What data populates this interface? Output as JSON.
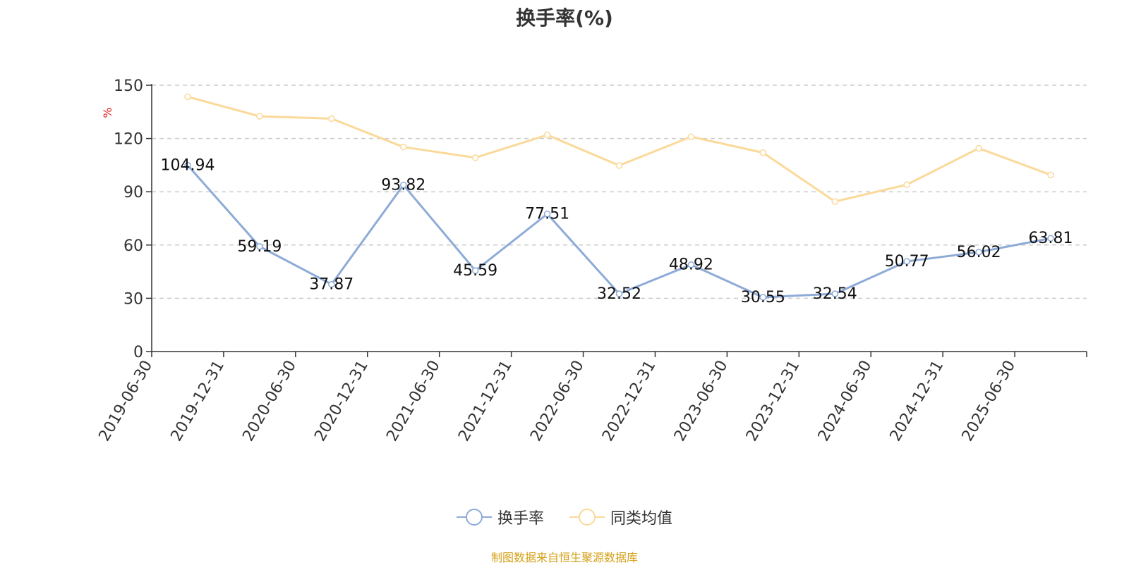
{
  "chart_data": {
    "type": "line",
    "title": "换手率(%)",
    "ylabel": "%",
    "ylim": [
      0,
      150
    ],
    "yticks": [
      0,
      30,
      60,
      90,
      120,
      150
    ],
    "grid": true,
    "legend_position": "bottom",
    "categories": [
      "2019-06-30",
      "2019-12-31",
      "2020-06-30",
      "2020-12-31",
      "2021-06-30",
      "2021-12-31",
      "2022-06-30",
      "2022-12-31",
      "2023-06-30",
      "2023-12-31",
      "2024-06-30",
      "2024-12-31",
      "2025-06-30"
    ],
    "series": [
      {
        "name": "换手率",
        "color": "#8eabd8",
        "show_labels": true,
        "values": [
          104.94,
          59.19,
          37.87,
          93.82,
          45.59,
          77.51,
          32.52,
          48.92,
          30.55,
          32.54,
          50.77,
          56.02,
          63.81
        ]
      },
      {
        "name": "同类均值",
        "color": "#fbd99a",
        "show_labels": false,
        "values": [
          143.5,
          132.5,
          131.2,
          115.2,
          109.2,
          122.0,
          104.8,
          121.0,
          112.0,
          84.5,
          94.0,
          114.5,
          99.5
        ]
      }
    ],
    "source": "制图数据来自恒生聚源数据库"
  }
}
